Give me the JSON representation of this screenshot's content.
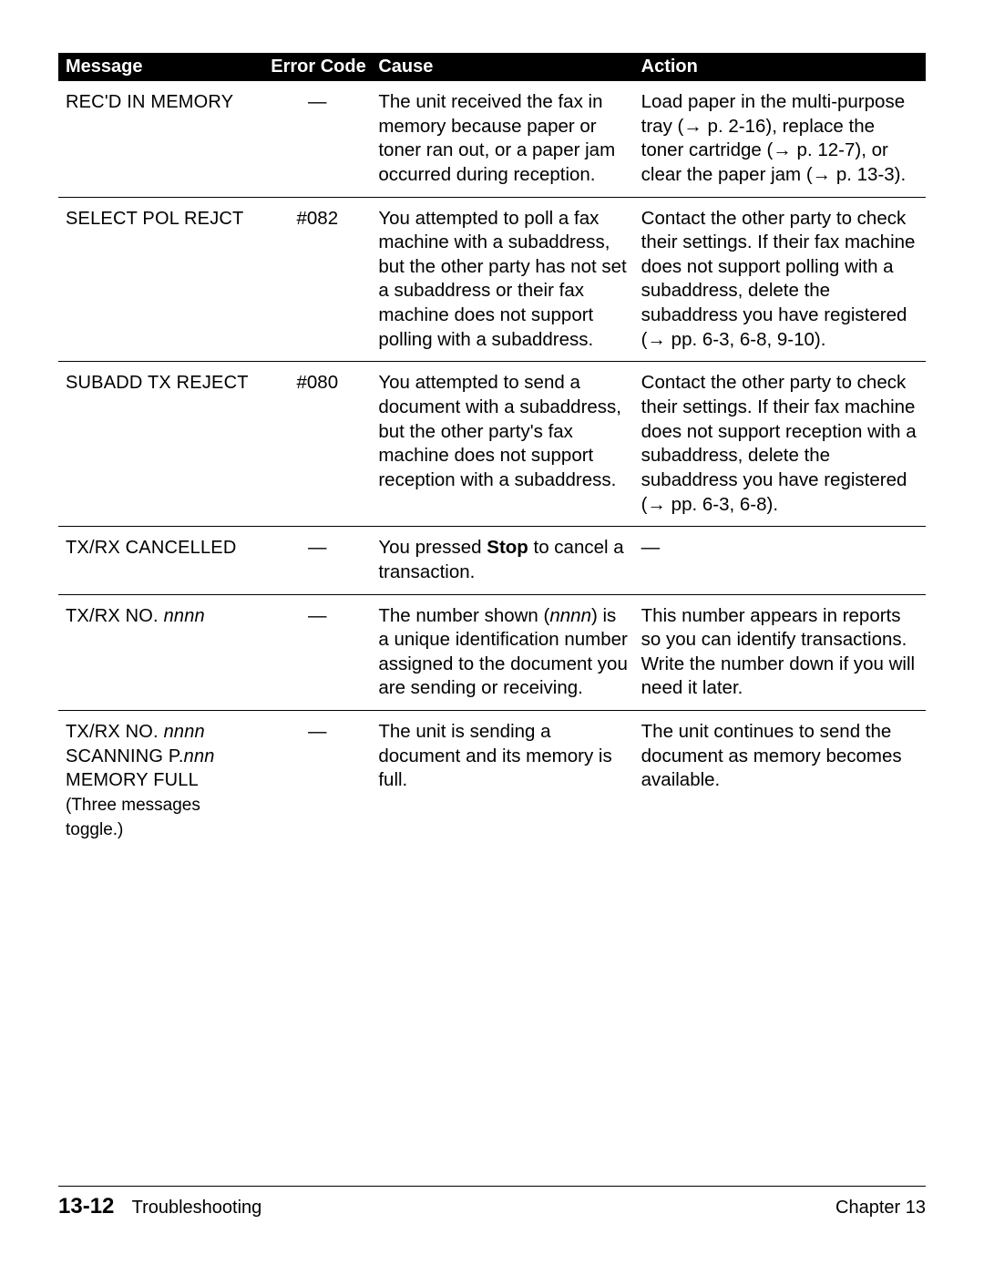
{
  "headers": {
    "message": "Message",
    "code": "Error Code",
    "cause": "Cause",
    "action": "Action"
  },
  "rows": [
    {
      "msg_html": "<span class='msg-mono'>REC'D IN MEMORY</span>",
      "code": "—",
      "cause_html": "The unit received the fax in memory because paper or toner ran out, or a paper jam occurred during reception.",
      "action_html": "Load paper in the multi-purpose tray (<span class='arrow'>→</span> p. 2-16), replace the toner cartridge (<span class='arrow'>→</span> p. 12-7), or clear the paper jam (<span class='arrow'>→</span> p. 13-3)."
    },
    {
      "msg_html": "<span class='msg-mono'>SELECT POL REJCT</span>",
      "code": "#082",
      "cause_html": "You attempted to poll a fax machine with a subaddress, but the other party has not set a subaddress or their fax machine does not support polling with a subaddress.",
      "action_html": "Contact the other party to check their settings. If their fax machine does not support polling with a subaddress, delete the subaddress you have registered (<span class='arrow'>→</span> pp. 6-3, 6-8, 9-10)."
    },
    {
      "msg_html": "<span class='msg-mono'>SUBADD TX REJECT</span>",
      "code": "#080",
      "cause_html": "You attempted to send a document with a subaddress, but the other party's fax machine does not support reception with a subaddress.",
      "action_html": "Contact the other party to check their settings. If their fax machine does not support reception with a subaddress, delete the subaddress you have registered (<span class='arrow'>→</span> pp. 6-3, 6-8)."
    },
    {
      "msg_html": "<span class='msg-mono'>TX/RX CANCELLED</span>",
      "code": "—",
      "cause_html": "You pressed <b>Stop</b> to cancel a transaction.",
      "action_html": "—"
    },
    {
      "msg_html": "<span class='msg-mono'>TX/RX NO. <span class='italic'>nnnn</span></span>",
      "code": "—",
      "cause_html": "The number shown (<span class='italic'>nnnn</span>) is a unique identification number assigned to the document you are sending or receiving.",
      "action_html": "This number appears in reports so you can identify transactions. Write the number down if you will need it later."
    },
    {
      "msg_html": "<span class='msg-mono'>TX/RX NO. <span class='italic'>nnnn</span></span><br><span class='msg-mono'>SCANNING P.<span class='italic'>nnn</span></span><br><span class='msg-mono'>MEMORY FULL</span><br><span class='sub'>(Three messages toggle.)</span>",
      "code": "—",
      "cause_html": "The unit is sending a document and its memory is full.",
      "action_html": "The unit continues to send the document as memory becomes available."
    }
  ],
  "footer": {
    "page": "13-12",
    "section": "Troubleshooting",
    "chapter": "Chapter 13"
  }
}
